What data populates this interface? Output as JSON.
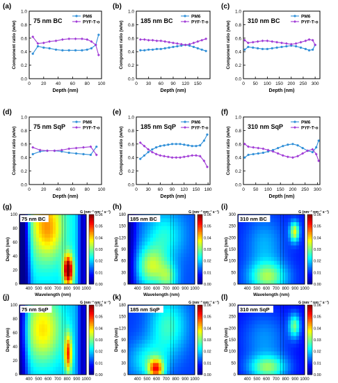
{
  "colors": {
    "pm6": "#2f8fd8",
    "pyf": "#a03ad6",
    "colorbar": [
      "#00008f",
      "#0000ff",
      "#0080ff",
      "#00ffff",
      "#80ff80",
      "#ffff00",
      "#ff8000",
      "#ff0000",
      "#800000"
    ]
  },
  "chart_data": [
    {
      "panel": "(a)",
      "type": "line",
      "title": "75 nm BC",
      "xlabel": "Depth (nm)",
      "ylabel": "Component ratio (w/w)",
      "xlim": [
        0,
        100
      ],
      "ylim": [
        0.0,
        1.0
      ],
      "xticks": [
        0,
        20,
        40,
        60,
        80,
        100
      ],
      "yticks": [
        0.0,
        0.2,
        0.4,
        0.6,
        0.8,
        1.0
      ],
      "series": [
        {
          "name": "PM6",
          "x": [
            5,
            12,
            20,
            28,
            37,
            46,
            55,
            64,
            73,
            80,
            86,
            92,
            96
          ],
          "y": [
            0.37,
            0.48,
            0.46,
            0.45,
            0.43,
            0.42,
            0.42,
            0.42,
            0.42,
            0.43,
            0.45,
            0.5,
            0.65
          ]
        },
        {
          "name": "PYF-T-o",
          "x": [
            5,
            12,
            20,
            28,
            37,
            46,
            55,
            64,
            73,
            80,
            86,
            92,
            96
          ],
          "y": [
            0.62,
            0.52,
            0.53,
            0.55,
            0.56,
            0.58,
            0.59,
            0.59,
            0.59,
            0.58,
            0.55,
            0.5,
            0.35
          ]
        }
      ]
    },
    {
      "panel": "(b)",
      "type": "line",
      "title": "185 nm BC",
      "xlabel": "Depth (nm)",
      "ylabel": "Component ratio (w/w)",
      "xlim": [
        0,
        180
      ],
      "ylim": [
        0.0,
        1.0
      ],
      "xticks": [
        0,
        30,
        60,
        90,
        120,
        150
      ],
      "yticks": [
        0.0,
        0.2,
        0.4,
        0.6,
        0.8,
        1.0
      ],
      "series": [
        {
          "name": "PM6",
          "x": [
            10,
            20,
            30,
            40,
            50,
            60,
            70,
            80,
            90,
            100,
            110,
            120,
            130,
            140,
            150,
            160,
            170
          ],
          "y": [
            0.42,
            0.42,
            0.43,
            0.43,
            0.44,
            0.44,
            0.45,
            0.46,
            0.47,
            0.48,
            0.49,
            0.5,
            0.49,
            0.47,
            0.45,
            0.43,
            0.41
          ]
        },
        {
          "name": "PYF-T-o",
          "x": [
            10,
            20,
            30,
            40,
            50,
            60,
            70,
            80,
            90,
            100,
            110,
            120,
            130,
            140,
            150,
            160,
            170
          ],
          "y": [
            0.58,
            0.58,
            0.57,
            0.57,
            0.56,
            0.56,
            0.55,
            0.54,
            0.53,
            0.52,
            0.51,
            0.5,
            0.51,
            0.53,
            0.55,
            0.57,
            0.59
          ]
        }
      ]
    },
    {
      "panel": "(c)",
      "type": "line",
      "title": "310 nm BC",
      "xlabel": "Depth (nm)",
      "ylabel": "Component ratio (w/w)",
      "xlim": [
        0,
        320
      ],
      "ylim": [
        0.0,
        1.0
      ],
      "xticks": [
        0,
        50,
        100,
        150,
        200,
        250,
        300
      ],
      "yticks": [
        0.0,
        0.2,
        0.4,
        0.6,
        0.8,
        1.0
      ],
      "series": [
        {
          "name": "PM6",
          "x": [
            5,
            20,
            40,
            60,
            80,
            100,
            120,
            140,
            160,
            180,
            200,
            220,
            240,
            260,
            275,
            290,
            300
          ],
          "y": [
            0.43,
            0.47,
            0.46,
            0.45,
            0.44,
            0.44,
            0.45,
            0.46,
            0.47,
            0.48,
            0.49,
            0.48,
            0.46,
            0.44,
            0.42,
            0.43,
            0.5
          ]
        },
        {
          "name": "PYF-T-o",
          "x": [
            5,
            20,
            40,
            60,
            80,
            100,
            120,
            140,
            160,
            180,
            200,
            220,
            240,
            260,
            275,
            290,
            300
          ],
          "y": [
            0.57,
            0.53,
            0.54,
            0.55,
            0.56,
            0.56,
            0.55,
            0.54,
            0.53,
            0.52,
            0.51,
            0.52,
            0.54,
            0.56,
            0.58,
            0.57,
            0.5
          ]
        }
      ]
    },
    {
      "panel": "(d)",
      "type": "line",
      "title": "75 nm SqP",
      "xlabel": "Depth (nm)",
      "ylabel": "Component ratio (w/w)",
      "xlim": [
        0,
        100
      ],
      "ylim": [
        0.0,
        1.0
      ],
      "xticks": [
        0,
        20,
        40,
        60,
        80,
        100
      ],
      "yticks": [
        0.0,
        0.2,
        0.4,
        0.6,
        0.8,
        1.0
      ],
      "series": [
        {
          "name": "PM6",
          "x": [
            5,
            15,
            25,
            35,
            45,
            55,
            65,
            75,
            85,
            93
          ],
          "y": [
            0.45,
            0.49,
            0.5,
            0.5,
            0.49,
            0.47,
            0.46,
            0.45,
            0.44,
            0.56
          ]
        },
        {
          "name": "PYF-T-o",
          "x": [
            5,
            15,
            25,
            35,
            45,
            55,
            65,
            75,
            85,
            93
          ],
          "y": [
            0.55,
            0.51,
            0.5,
            0.5,
            0.51,
            0.53,
            0.54,
            0.55,
            0.56,
            0.44
          ]
        }
      ]
    },
    {
      "panel": "(e)",
      "type": "line",
      "title": "185 nm SqP",
      "xlabel": "Depth (nm)",
      "ylabel": "Component ratio (w/w)",
      "xlim": [
        0,
        185
      ],
      "ylim": [
        0.0,
        1.0
      ],
      "xticks": [
        0,
        30,
        60,
        90,
        120,
        150,
        180
      ],
      "yticks": [
        0.0,
        0.2,
        0.4,
        0.6,
        0.8,
        1.0
      ],
      "series": [
        {
          "name": "PM6",
          "x": [
            10,
            20,
            30,
            40,
            50,
            60,
            70,
            80,
            90,
            100,
            110,
            120,
            130,
            140,
            150,
            160,
            170,
            178
          ],
          "y": [
            0.38,
            0.43,
            0.48,
            0.52,
            0.55,
            0.57,
            0.58,
            0.59,
            0.6,
            0.6,
            0.6,
            0.59,
            0.58,
            0.57,
            0.57,
            0.58,
            0.65,
            0.74
          ]
        },
        {
          "name": "PYF-T-o",
          "x": [
            10,
            20,
            30,
            40,
            50,
            60,
            70,
            80,
            90,
            100,
            110,
            120,
            130,
            140,
            150,
            160,
            170,
            178
          ],
          "y": [
            0.62,
            0.57,
            0.52,
            0.48,
            0.45,
            0.43,
            0.42,
            0.41,
            0.4,
            0.4,
            0.4,
            0.41,
            0.42,
            0.43,
            0.43,
            0.42,
            0.35,
            0.26
          ]
        }
      ]
    },
    {
      "panel": "(f)",
      "type": "line",
      "title": "310 nm SqP",
      "xlabel": "Depth (nm)",
      "ylabel": "Component ratio (w/w)",
      "xlim": [
        0,
        310
      ],
      "ylim": [
        0.0,
        1.0
      ],
      "xticks": [
        0,
        50,
        100,
        150,
        200,
        250,
        300
      ],
      "yticks": [
        0.0,
        0.2,
        0.4,
        0.6,
        0.8,
        1.0
      ],
      "series": [
        {
          "name": "PM6",
          "x": [
            5,
            20,
            40,
            60,
            80,
            100,
            120,
            140,
            160,
            180,
            200,
            220,
            240,
            260,
            280,
            295,
            305
          ],
          "y": [
            0.4,
            0.44,
            0.45,
            0.46,
            0.47,
            0.49,
            0.51,
            0.54,
            0.57,
            0.59,
            0.6,
            0.58,
            0.54,
            0.5,
            0.48,
            0.55,
            0.65
          ]
        },
        {
          "name": "PYF-T-o",
          "x": [
            5,
            20,
            40,
            60,
            80,
            100,
            120,
            140,
            160,
            180,
            200,
            220,
            240,
            260,
            280,
            295,
            305
          ],
          "y": [
            0.6,
            0.56,
            0.55,
            0.54,
            0.53,
            0.51,
            0.49,
            0.46,
            0.43,
            0.41,
            0.4,
            0.42,
            0.46,
            0.5,
            0.52,
            0.45,
            0.35
          ]
        }
      ]
    },
    {
      "panel": "(g)",
      "type": "heatmap",
      "title": "75 nm BC",
      "xlabel": "Wavelength (nm)",
      "ylabel": "Depth (nm)",
      "colorbar_label": "G (nm⁻³ nm⁻¹ s⁻¹)",
      "xlim": [
        300,
        1000
      ],
      "ylim": [
        0,
        100
      ],
      "xticks": [
        400,
        500,
        600,
        700,
        800,
        900,
        1000
      ],
      "yticks": [
        0,
        20,
        40,
        60,
        80,
        100
      ],
      "colorbar_ticks": [
        "0.00",
        "0.01",
        "0.02",
        "0.03",
        "0.04",
        "0.05",
        "0.06"
      ],
      "profile": "g"
    },
    {
      "panel": "(h)",
      "type": "heatmap",
      "title": "185 nm BC",
      "xlabel": "Wavelength (nm)",
      "ylabel": "Depth (nm)",
      "colorbar_label": "G (nm⁻³ nm⁻¹ s⁻¹)",
      "xlim": [
        300,
        1000
      ],
      "ylim": [
        0,
        180
      ],
      "xticks": [
        400,
        500,
        600,
        700,
        800,
        900,
        1000
      ],
      "yticks": [
        0,
        30,
        60,
        90,
        120,
        150,
        180
      ],
      "colorbar_ticks": [
        "0.00",
        "0.01",
        "0.02",
        "0.03",
        "0.04",
        "0.05",
        "0.06"
      ],
      "profile": "h"
    },
    {
      "panel": "(i)",
      "type": "heatmap",
      "title": "310 nm BC",
      "xlabel": "Wavelength (nm)",
      "ylabel": "Depth (nm)",
      "colorbar_label": "G (nm⁻³ nm⁻¹ s⁻¹)",
      "xlim": [
        300,
        1000
      ],
      "ylim": [
        0,
        300
      ],
      "xticks": [
        400,
        500,
        600,
        700,
        800,
        900,
        1000
      ],
      "yticks": [
        0,
        50,
        100,
        150,
        200,
        250,
        300
      ],
      "colorbar_ticks": [
        "0.00",
        "0.01",
        "0.02",
        "0.03",
        "0.04",
        "0.05",
        "0.06"
      ],
      "profile": "i"
    },
    {
      "panel": "(j)",
      "type": "heatmap",
      "title": "75 nm SqP",
      "xlabel": "Wavelength (nm)",
      "ylabel": "Depth (nm)",
      "colorbar_label": "G (nm⁻³ nm⁻¹ s⁻¹)",
      "xlim": [
        300,
        1000
      ],
      "ylim": [
        0,
        100
      ],
      "xticks": [
        400,
        500,
        600,
        700,
        800,
        900,
        1000
      ],
      "yticks": [
        0,
        20,
        40,
        60,
        80,
        100
      ],
      "colorbar_ticks": [
        "0.00",
        "0.01",
        "0.02",
        "0.03",
        "0.04",
        "0.05",
        "0.06"
      ],
      "profile": "j"
    },
    {
      "panel": "(k)",
      "type": "heatmap",
      "title": "185 nm SqP",
      "xlabel": "Wavelength (nm)",
      "ylabel": "Depth (nm)",
      "colorbar_label": "G (nm⁻³ nm⁻¹ s⁻¹)",
      "xlim": [
        300,
        1000
      ],
      "ylim": [
        0,
        180
      ],
      "xticks": [
        400,
        500,
        600,
        700,
        800,
        900,
        1000
      ],
      "yticks": [
        0,
        30,
        60,
        90,
        120,
        150,
        180
      ],
      "colorbar_ticks": [
        "0.00",
        "0.01",
        "0.02",
        "0.03",
        "0.04",
        "0.05",
        "0.06"
      ],
      "profile": "k"
    },
    {
      "panel": "(l)",
      "type": "heatmap",
      "title": "310 nm SqP",
      "xlabel": "Wavelength (nm)",
      "ylabel": "Depth (nm)",
      "colorbar_label": "G (nm⁻³ nm⁻¹ s⁻¹)",
      "xlim": [
        300,
        1000
      ],
      "ylim": [
        0,
        300
      ],
      "xticks": [
        400,
        500,
        600,
        700,
        800,
        900,
        1000
      ],
      "yticks": [
        0,
        50,
        100,
        150,
        200,
        250,
        300
      ],
      "colorbar_ticks": [
        "0.00",
        "0.01",
        "0.02",
        "0.03",
        "0.04",
        "0.05",
        "0.06"
      ],
      "profile": "l"
    }
  ]
}
